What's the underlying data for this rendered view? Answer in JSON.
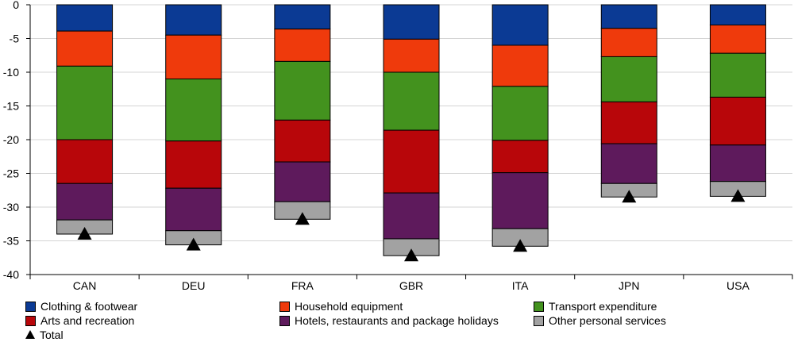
{
  "chart_data": {
    "type": "bar",
    "stacked": true,
    "categories": [
      "CAN",
      "DEU",
      "FRA",
      "GBR",
      "ITA",
      "JPN",
      "USA"
    ],
    "ylim": [
      -40,
      0
    ],
    "yticks": [
      0,
      -5,
      -10,
      -15,
      -20,
      -25,
      -30,
      -35,
      -40
    ],
    "grid": true,
    "legend_position": "bottom",
    "series": [
      {
        "name": "Clothing & footwear",
        "color": "#0b3a94",
        "values": [
          -3.9,
          -4.5,
          -3.6,
          -5.1,
          -6.0,
          -3.5,
          -3.0
        ]
      },
      {
        "name": "Household equipment",
        "color": "#ef3a0c",
        "values": [
          -5.2,
          -6.5,
          -4.8,
          -4.9,
          -6.1,
          -4.2,
          -4.2
        ]
      },
      {
        "name": "Transport expenditure",
        "color": "#43921e",
        "values": [
          -10.9,
          -9.2,
          -8.7,
          -8.6,
          -8.0,
          -6.7,
          -6.5
        ]
      },
      {
        "name": "Arts and recreation",
        "color": "#b8060a",
        "values": [
          -6.5,
          -7.0,
          -6.2,
          -9.3,
          -4.8,
          -6.2,
          -7.1
        ]
      },
      {
        "name": "Hotels, restaurants and package holidays",
        "color": "#5e1a5c",
        "values": [
          -5.4,
          -6.3,
          -5.9,
          -6.8,
          -8.3,
          -5.9,
          -5.4
        ]
      },
      {
        "name": "Other personal services",
        "color": "#a2a2a2",
        "values": [
          -2.1,
          -2.1,
          -2.6,
          -2.5,
          -2.6,
          -2.0,
          -2.2
        ]
      }
    ],
    "total": {
      "name": "Total",
      "values": [
        -34.0,
        -35.6,
        -31.8,
        -37.2,
        -35.8,
        -28.5,
        -28.4
      ]
    }
  }
}
